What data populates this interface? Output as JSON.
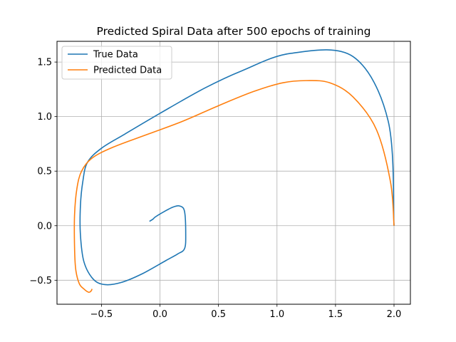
{
  "chart_data": {
    "type": "line",
    "title": "Predicted Spiral Data after 500 epochs of training",
    "xlabel": "",
    "ylabel": "",
    "xlim": [
      -0.88,
      2.14
    ],
    "ylim": [
      -0.72,
      1.69
    ],
    "xticks": [
      {
        "value": -0.5,
        "label": "−0.5"
      },
      {
        "value": 0.0,
        "label": "0.0"
      },
      {
        "value": 0.5,
        "label": "0.5"
      },
      {
        "value": 1.0,
        "label": "1.0"
      },
      {
        "value": 1.5,
        "label": "1.5"
      },
      {
        "value": 2.0,
        "label": "2.0"
      }
    ],
    "yticks": [
      {
        "value": -0.5,
        "label": "−0.5"
      },
      {
        "value": 0.0,
        "label": "0.0"
      },
      {
        "value": 0.5,
        "label": "0.5"
      },
      {
        "value": 1.0,
        "label": "1.0"
      },
      {
        "value": 1.5,
        "label": "1.5"
      }
    ],
    "grid": true,
    "legend_position": "top-left",
    "series": [
      {
        "name": "True Data",
        "color": "#1f77b4",
        "x": [
          2.0,
          1.95,
          1.65,
          1.12,
          0.7,
          0.38,
          0.0,
          -0.3,
          -0.5,
          -0.62,
          -0.66,
          -0.68,
          -0.68,
          -0.65,
          -0.57,
          -0.47,
          -0.33,
          -0.15,
          0.05,
          0.15,
          0.21,
          0.22,
          0.21,
          0.17,
          0.11,
          0.02,
          -0.04,
          -0.06,
          -0.09
        ],
        "y": [
          0.0,
          0.96,
          1.55,
          1.58,
          1.42,
          1.26,
          1.03,
          0.84,
          0.71,
          0.58,
          0.4,
          0.18,
          -0.08,
          -0.33,
          -0.49,
          -0.54,
          -0.52,
          -0.44,
          -0.32,
          -0.26,
          -0.21,
          -0.08,
          0.13,
          0.18,
          0.17,
          0.12,
          0.08,
          0.06,
          0.04
        ]
      },
      {
        "name": "Predicted Data",
        "color": "#ff7f0e",
        "x": [
          2.0,
          1.97,
          1.85,
          1.65,
          1.45,
          1.25,
          1.05,
          0.8,
          0.5,
          0.2,
          -0.1,
          -0.4,
          -0.58,
          -0.67,
          -0.71,
          -0.73,
          -0.73,
          -0.72,
          -0.69,
          -0.65,
          -0.61,
          -0.59,
          -0.58
        ],
        "y": [
          0.0,
          0.4,
          0.88,
          1.18,
          1.31,
          1.33,
          1.31,
          1.23,
          1.1,
          0.96,
          0.84,
          0.72,
          0.62,
          0.5,
          0.34,
          0.1,
          -0.2,
          -0.4,
          -0.53,
          -0.58,
          -0.61,
          -0.6,
          -0.58
        ]
      }
    ]
  }
}
